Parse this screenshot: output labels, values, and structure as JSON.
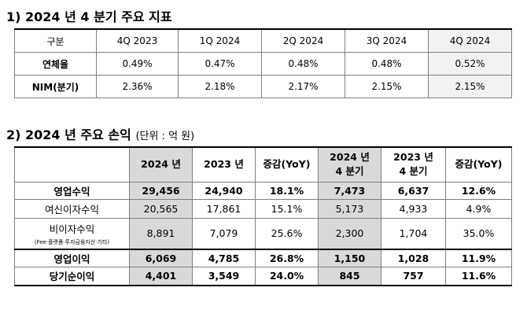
{
  "section1": {
    "title": "1) 2024 년 4 분기 주요 지표",
    "headers": [
      "구분",
      "4Q 2023",
      "1Q 2024",
      "2Q 2024",
      "3Q 2024",
      "4Q 2024"
    ],
    "rows": [
      {
        "label": "연체율",
        "values": [
          "0.49%",
          "0.47%",
          "0.48%",
          "0.48%",
          "0.52%"
        ]
      },
      {
        "label": "NIM(분기)",
        "values": [
          "2.36%",
          "2.18%",
          "2.17%",
          "2.15%",
          "2.15%"
        ]
      }
    ]
  },
  "section2": {
    "title": "2) 2024 년 주요 손익",
    "unit": "(단위 : 억 원)",
    "headers": [
      {
        "line1": "2024 년",
        "line2": ""
      },
      {
        "line1": "2023 년",
        "line2": ""
      },
      {
        "line1": "증감(YoY)",
        "line2": ""
      },
      {
        "line1": "2024 년",
        "line2": "4 분기"
      },
      {
        "line1": "2023 년",
        "line2": "4 분기"
      },
      {
        "line1": "증감(YoY)",
        "line2": ""
      }
    ],
    "rows": [
      {
        "label": "영업수익",
        "note": "",
        "values": [
          "29,456",
          "24,940",
          "18.1%",
          "7,473",
          "6,637",
          "12.6%"
        ]
      },
      {
        "label": "여신이자수익",
        "note": "",
        "values": [
          "20,565",
          "17,861",
          "15.1%",
          "5,173",
          "4,933",
          "4.9%"
        ]
      },
      {
        "label": "비이자수익",
        "note": "(Fee·플랫폼·투자금융자산·기타)",
        "values": [
          "8,891",
          "7,079",
          "25.6%",
          "2,300",
          "1,704",
          "35.0%"
        ]
      },
      {
        "label": "영업이익",
        "note": "",
        "values": [
          "6,069",
          "4,785",
          "26.8%",
          "1,150",
          "1,028",
          "11.9%"
        ]
      },
      {
        "label": "당기순이익",
        "note": "",
        "values": [
          "4,401",
          "3,549",
          "24.0%",
          "845",
          "757",
          "11.6%"
        ]
      }
    ]
  }
}
